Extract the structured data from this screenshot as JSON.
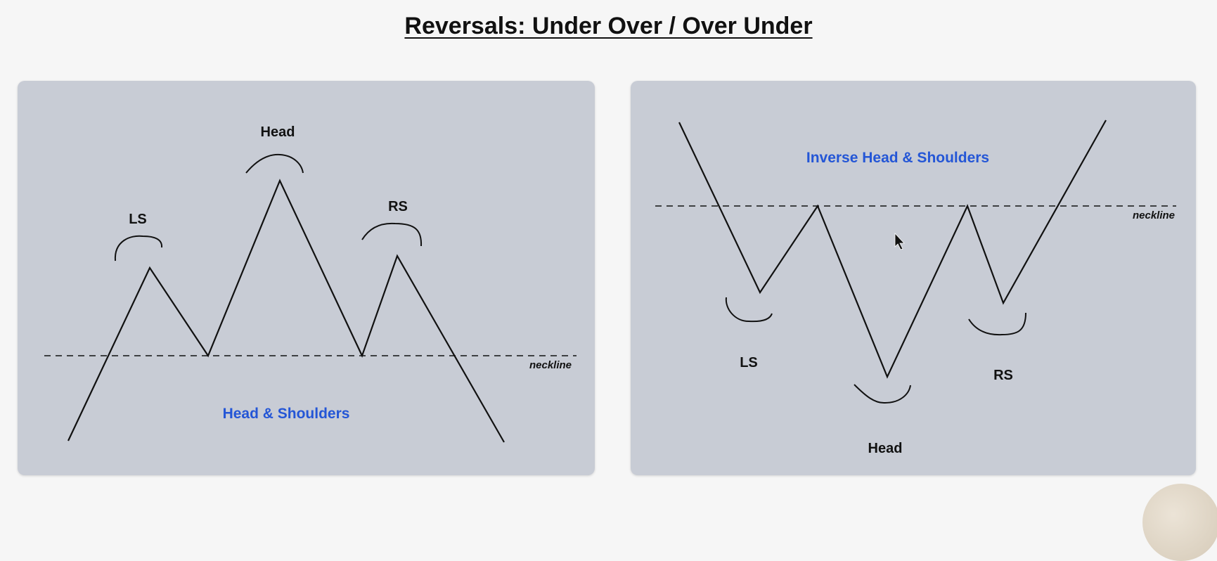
{
  "title": "Reversals: Under Over / Over Under",
  "panels": {
    "left": {
      "pattern_name": "Head & Shoulders",
      "labels": {
        "left_shoulder": "LS",
        "head": "Head",
        "right_shoulder": "RS",
        "neckline": "neckline"
      }
    },
    "right": {
      "pattern_name": "Inverse Head & Shoulders",
      "labels": {
        "left_shoulder": "LS",
        "head": "Head",
        "right_shoulder": "RS",
        "neckline": "neckline"
      }
    }
  },
  "colors": {
    "background": "#f6f6f6",
    "panel": "#c8ccd5",
    "pattern_name": "#2456d6",
    "ink": "#111111"
  }
}
